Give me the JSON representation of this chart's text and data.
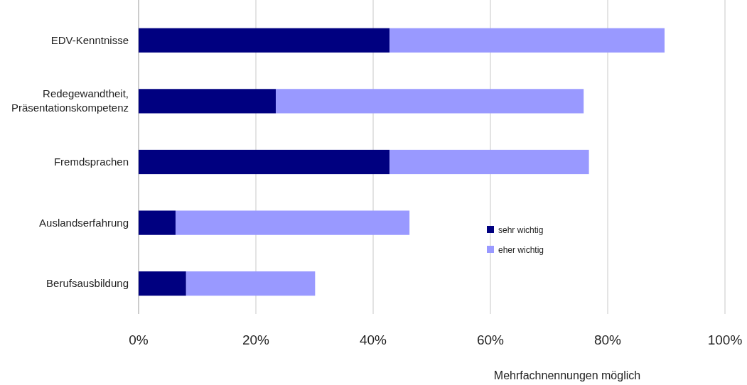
{
  "chart_data": {
    "type": "bar",
    "orientation": "horizontal",
    "stacked": true,
    "categories": [
      "EDV-Kenntnisse",
      "Redegewandtheit, Präsentationskompetenz",
      "Fremdsprachen",
      "Auslandserfahrung",
      "Berufsausbildung"
    ],
    "series": [
      {
        "name": "sehr wichtig",
        "color": "#000080",
        "values": [
          42.8,
          23.4,
          42.8,
          6.3,
          8.1
        ]
      },
      {
        "name": "eher wichtig",
        "color": "#9999ff",
        "values": [
          46.9,
          52.5,
          34.0,
          39.9,
          22.0
        ]
      }
    ],
    "xlim": [
      0,
      100
    ],
    "xticks": [
      {
        "value": 0,
        "label": "0%"
      },
      {
        "value": 20,
        "label": "20%"
      },
      {
        "value": 40,
        "label": "40%"
      },
      {
        "value": 60,
        "label": "60%"
      },
      {
        "value": 80,
        "label": "80%"
      },
      {
        "value": 100,
        "label": "100%"
      }
    ],
    "grid": "x",
    "legend": "right",
    "annotations": [
      "Mehrfachnennungen möglich"
    ]
  }
}
